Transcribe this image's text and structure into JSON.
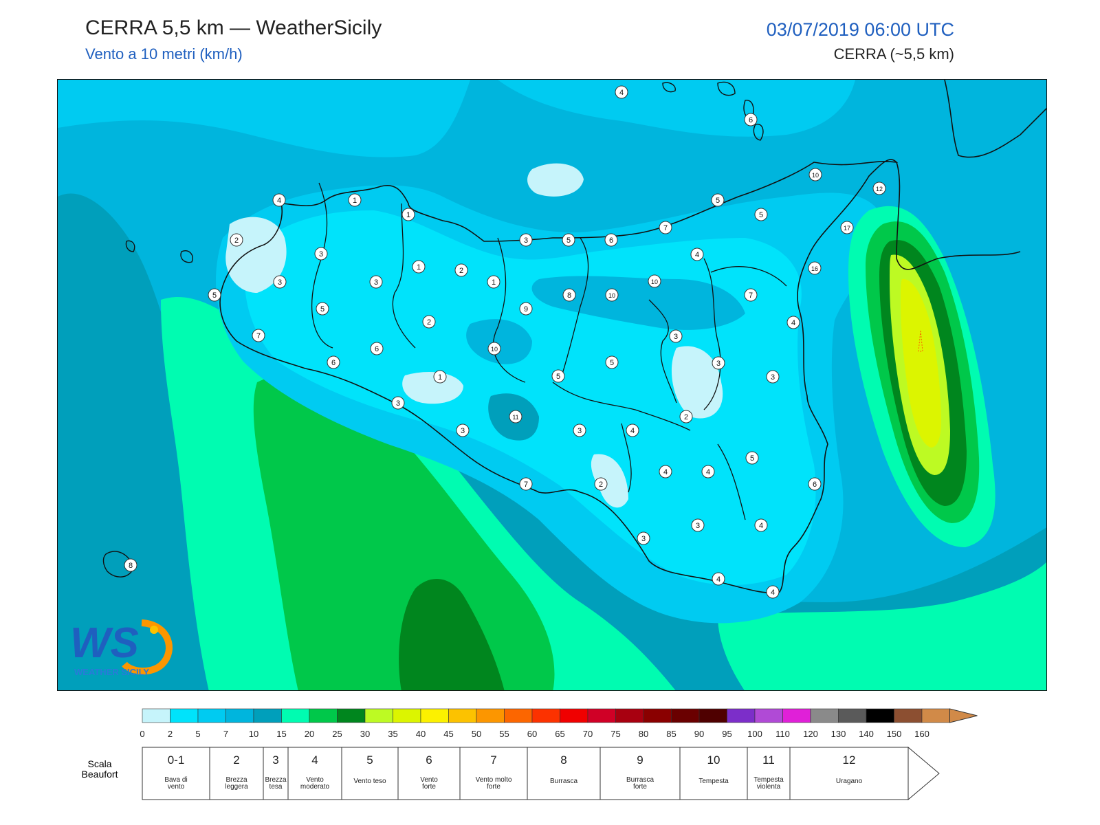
{
  "header": {
    "title": "CERRA 5,5 km — WeatherSicily",
    "subtitle": "Vento a 10 metri (km/h)",
    "datetime": "03/07/2019 06:00 UTC",
    "model": "CERRA (~5,5 km)"
  },
  "logo": {
    "letters": "WS",
    "caption": "WEATHER SICILY"
  },
  "station_labels": [
    {
      "name": "ustica",
      "value": "4"
    },
    {
      "name": "lipari",
      "value": "6"
    },
    {
      "name": "trapani",
      "value": "4"
    },
    {
      "name": "palermo-west",
      "value": "1"
    },
    {
      "name": "palermo",
      "value": "1"
    },
    {
      "name": "marsala-north",
      "value": "2"
    },
    {
      "name": "marsala",
      "value": "3"
    },
    {
      "name": "mazara",
      "value": "5"
    },
    {
      "name": "trapani-inland",
      "value": "3"
    },
    {
      "name": "alcamo",
      "value": "3"
    },
    {
      "name": "corleone-north",
      "value": "1"
    },
    {
      "name": "termini",
      "value": "2"
    },
    {
      "name": "bagheria",
      "value": "1"
    },
    {
      "name": "salemi",
      "value": "5"
    },
    {
      "name": "castelvetrano-north",
      "value": "2"
    },
    {
      "name": "cefalu",
      "value": "3"
    },
    {
      "name": "cefalu-east",
      "value": "5"
    },
    {
      "name": "santo-stefano",
      "value": "6"
    },
    {
      "name": "capo-orlando",
      "value": "7"
    },
    {
      "name": "milazzo-area",
      "value": "5"
    },
    {
      "name": "messina-north",
      "value": "5"
    },
    {
      "name": "messina",
      "value": "10"
    },
    {
      "name": "reggio",
      "value": "12"
    },
    {
      "name": "aspromonte",
      "value": "17"
    },
    {
      "name": "taormina",
      "value": "16"
    },
    {
      "name": "nebrodi",
      "value": "4"
    },
    {
      "name": "madonie",
      "value": "9"
    },
    {
      "name": "nebrodi-west",
      "value": "10"
    },
    {
      "name": "nicosia",
      "value": "8"
    },
    {
      "name": "etna-north",
      "value": "10"
    },
    {
      "name": "randazzo",
      "value": "7"
    },
    {
      "name": "acireale",
      "value": "4"
    },
    {
      "name": "corleone",
      "value": "6"
    },
    {
      "name": "sciacca-north",
      "value": "6"
    },
    {
      "name": "lercara",
      "value": "10"
    },
    {
      "name": "sciacca",
      "value": "7"
    },
    {
      "name": "bivona",
      "value": "1"
    },
    {
      "name": "caltanissetta",
      "value": "5"
    },
    {
      "name": "enna",
      "value": "5"
    },
    {
      "name": "adrano",
      "value": "3"
    },
    {
      "name": "paterno",
      "value": "3"
    },
    {
      "name": "catania",
      "value": "3"
    },
    {
      "name": "ribera",
      "value": "3"
    },
    {
      "name": "agrigento-north",
      "value": "11"
    },
    {
      "name": "agrigento",
      "value": "3"
    },
    {
      "name": "pietraperzia",
      "value": "3"
    },
    {
      "name": "piazza-armerina",
      "value": "4"
    },
    {
      "name": "caltagirone",
      "value": "2"
    },
    {
      "name": "lentini",
      "value": "5"
    },
    {
      "name": "augusta",
      "value": "6"
    },
    {
      "name": "licata",
      "value": "7"
    },
    {
      "name": "gela",
      "value": "2"
    },
    {
      "name": "niscemi",
      "value": "4"
    },
    {
      "name": "vizzini",
      "value": "4"
    },
    {
      "name": "scoglitti",
      "value": "3"
    },
    {
      "name": "ragusa",
      "value": "3"
    },
    {
      "name": "siracusa",
      "value": "4"
    },
    {
      "name": "pozzallo",
      "value": "4"
    },
    {
      "name": "pachino",
      "value": "4"
    },
    {
      "name": "pantelleria",
      "value": "8"
    }
  ],
  "colorbar": {
    "colors": [
      "#c6f4fb",
      "#00e3fb",
      "#00cbf1",
      "#00b5dd",
      "#009fbb",
      "#00fcb1",
      "#00c84a",
      "#00861e",
      "#bdfa23",
      "#dcf500",
      "#fcf100",
      "#fcc200",
      "#fc9600",
      "#fc6600",
      "#fc3200",
      "#f00000",
      "#d00026",
      "#a80010",
      "#8a0000",
      "#6a0000",
      "#4f0000",
      "#7c2ec9",
      "#b04ad6",
      "#e020d8",
      "#8a8a8a",
      "#5a5a5a",
      "#000000",
      "#8c4f31",
      "#d18a48"
    ],
    "ticks": [
      "0",
      "2",
      "5",
      "7",
      "10",
      "15",
      "20",
      "25",
      "30",
      "35",
      "40",
      "45",
      "50",
      "55",
      "60",
      "65",
      "70",
      "75",
      "80",
      "85",
      "90",
      "95",
      "100",
      "110",
      "120",
      "130",
      "140",
      "150",
      "160"
    ]
  },
  "beaufort": {
    "label": "Scala\nBeaufort",
    "label_lines": [
      "Scala",
      "Beaufort"
    ],
    "classes": [
      {
        "num": "0-1",
        "desc": [
          "Bava di",
          "vento"
        ]
      },
      {
        "num": "2",
        "desc": [
          "Brezza",
          "leggera"
        ]
      },
      {
        "num": "3",
        "desc": [
          "Brezza",
          "tesa"
        ]
      },
      {
        "num": "4",
        "desc": [
          "Vento",
          "moderato"
        ]
      },
      {
        "num": "5",
        "desc": [
          "Vento teso"
        ]
      },
      {
        "num": "6",
        "desc": [
          "Vento",
          "forte"
        ]
      },
      {
        "num": "7",
        "desc": [
          "Vento molto",
          "forte"
        ]
      },
      {
        "num": "8",
        "desc": [
          "Burrasca"
        ]
      },
      {
        "num": "9",
        "desc": [
          "Burrasca",
          "forte"
        ]
      },
      {
        "num": "10",
        "desc": [
          "Tempesta"
        ]
      },
      {
        "num": "11",
        "desc": [
          "Tempesta",
          "violenta"
        ]
      },
      {
        "num": "12",
        "desc": [
          "Uragano"
        ]
      }
    ]
  }
}
